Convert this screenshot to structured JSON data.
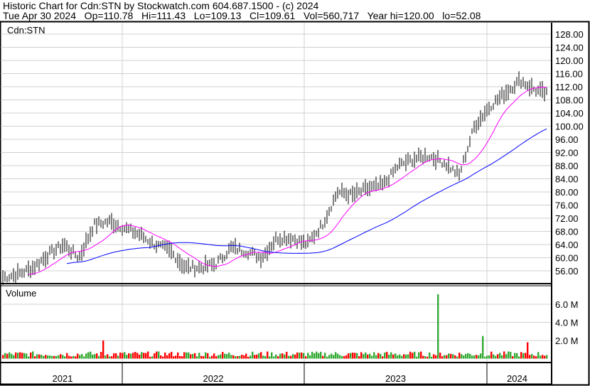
{
  "header": {
    "title": "Historic Chart for Cdn:STN by Stockwatch.com 604.687.1500 - (c) 2024",
    "info": "Tue Apr 30 2024   Op=110.78   Hi=111.43   Lo=109.13   Cl=109.61   Vol=560,717   Year hi=120.00   lo=52.08"
  },
  "chart_data": {
    "type": "line",
    "symbol_label": "Cdn:STN",
    "volume_label": "Volume",
    "price_ylim": [
      52,
      130
    ],
    "price_ticks": [
      "56.00",
      "60.00",
      "64.00",
      "68.00",
      "72.00",
      "76.00",
      "80.00",
      "84.00",
      "88.00",
      "92.00",
      "96.00",
      "100.00",
      "104.00",
      "108.00",
      "112.00",
      "116.00",
      "120.00",
      "124.00",
      "128.00"
    ],
    "volume_ticks": [
      "2.0 M",
      "4.0 M",
      "6.0 M"
    ],
    "volume_ylim_millions": [
      0,
      8
    ],
    "x_labels": [
      "2021",
      "2022",
      "2023",
      "2024"
    ],
    "grid": true,
    "colors": {
      "price": "#000000",
      "ma_short": "#ff00ff",
      "ma_long": "#0000ff",
      "vol_up": "#33aa33",
      "vol_down": "#ff0000"
    },
    "dates": [
      "2021-05",
      "2021-06",
      "2021-07",
      "2021-08",
      "2021-09",
      "2021-10",
      "2021-11",
      "2021-12",
      "2022-01",
      "2022-02",
      "2022-03",
      "2022-04",
      "2022-05",
      "2022-06",
      "2022-07",
      "2022-08",
      "2022-09",
      "2022-10",
      "2022-11",
      "2022-12",
      "2023-01",
      "2023-02",
      "2023-03",
      "2023-04",
      "2023-05",
      "2023-06",
      "2023-07",
      "2023-08",
      "2023-09",
      "2023-10",
      "2023-11",
      "2023-12",
      "2024-01",
      "2024-02",
      "2024-03",
      "2024-04",
      "2024-04-30"
    ],
    "close": [
      54,
      55,
      57,
      61,
      64,
      60,
      70,
      71,
      69,
      67,
      64,
      62,
      57,
      57,
      58,
      63,
      62,
      60,
      66,
      66,
      64,
      70,
      80,
      79,
      81,
      82,
      88,
      90,
      91,
      89,
      85,
      100,
      106,
      110,
      114,
      111,
      109.61
    ],
    "volume_spikes_millions": [
      {
        "date": "2021-11",
        "value": 2.0
      },
      {
        "date": "2023-09",
        "value": 7.1
      },
      {
        "date": "2023-12",
        "value": 2.5
      },
      {
        "date": "2024-03",
        "value": 1.8
      }
    ],
    "typical_volume_millions": 0.5
  }
}
